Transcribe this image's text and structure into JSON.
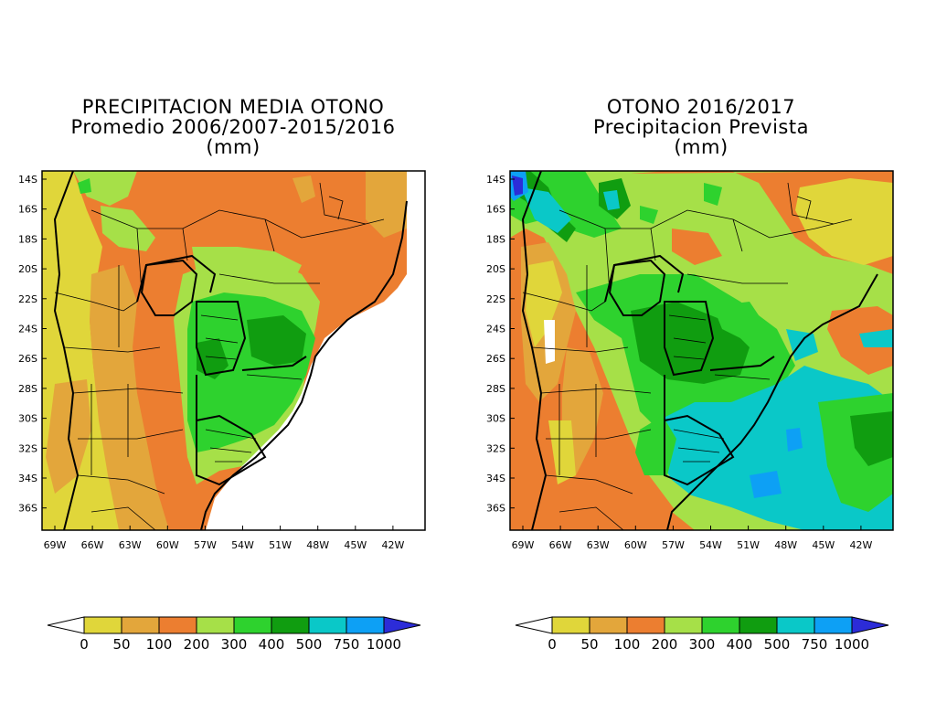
{
  "left_map": {
    "title_lines": [
      "PRECIPITACION MEDIA OTONO",
      "Promedio 2006/2007-2015/2016",
      "(mm)"
    ]
  },
  "right_map": {
    "title_lines": [
      "OTONO 2016/2017",
      "Precipitacion Prevista",
      "(mm)"
    ]
  },
  "lat_labels": [
    "14S",
    "16S",
    "18S",
    "20S",
    "22S",
    "24S",
    "26S",
    "28S",
    "30S",
    "32S",
    "34S",
    "36S"
  ],
  "lon_labels": [
    "69W",
    "66W",
    "63W",
    "60W",
    "57W",
    "54W",
    "51W",
    "48W",
    "45W",
    "42W"
  ],
  "colorbar": {
    "labels": [
      "0",
      "50",
      "100",
      "200",
      "300",
      "400",
      "500",
      "750",
      "1000"
    ],
    "colors": [
      "#ffffff",
      "#e0d63a",
      "#e3a63b",
      "#ec7e30",
      "#a6e048",
      "#2ed22e",
      "#109d10",
      "#0ac8c8",
      "#0da0f5",
      "#2c2cd8"
    ]
  }
}
